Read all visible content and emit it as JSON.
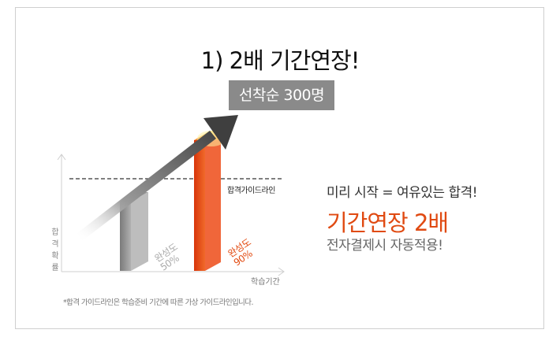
{
  "headline": "1) 2배 기간연장!",
  "badge": "선착순 300명",
  "chart": {
    "y_label": "합격확률",
    "x_label": "학습기간",
    "guide_label": "합격가이드라인",
    "bar_gray": {
      "label": "완성도",
      "value_text": "50%",
      "value": 50,
      "color": "#8c8c8c"
    },
    "bar_red": {
      "label": "완성도",
      "value_text": "90%",
      "value": 90,
      "color": "#e8440c"
    },
    "footnote": "*합격 가이드라인은 학습준비 기간에 따른 가상 가이드라인입니다."
  },
  "promo": {
    "line1": "미리 시작 = 여유있는 합격!",
    "line2": "기간연장 2배",
    "line3": "전자결제시 자동적용!",
    "accent_color": "#e04a12"
  }
}
